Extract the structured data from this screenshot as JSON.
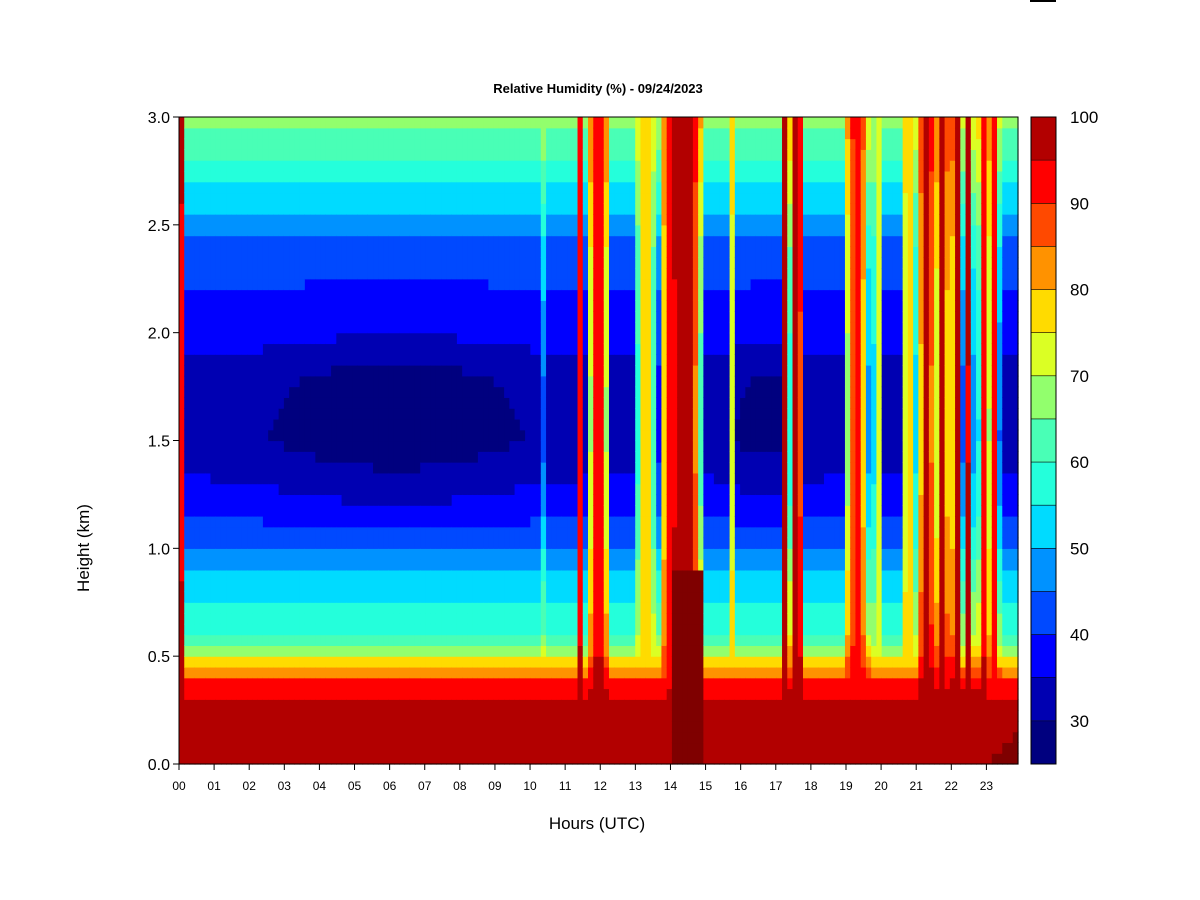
{
  "chart_data": {
    "type": "heatmap",
    "title": "Relative Humidity (%) - 09/24/2023",
    "xlabel": "Hours (UTC)",
    "ylabel": "Height (km)",
    "xlim": [
      0,
      23.9
    ],
    "ylim": [
      0.0,
      3.0
    ],
    "x_ticks": [
      "00",
      "01",
      "02",
      "03",
      "04",
      "05",
      "06",
      "07",
      "08",
      "09",
      "10",
      "11",
      "12",
      "13",
      "14",
      "15",
      "16",
      "17",
      "18",
      "19",
      "20",
      "21",
      "22",
      "23"
    ],
    "y_ticks": [
      "0.0",
      "0.5",
      "1.0",
      "1.5",
      "2.0",
      "2.5",
      "3.0"
    ],
    "colorbar": {
      "levels": [
        25,
        30,
        35,
        40,
        45,
        50,
        55,
        60,
        65,
        70,
        75,
        80,
        85,
        90,
        95,
        100
      ],
      "tick_labels": [
        "30",
        "40",
        "50",
        "60",
        "70",
        "80",
        "90",
        "100"
      ],
      "colors": [
        "#00007f",
        "#0000b2",
        "#0000ff",
        "#0049ff",
        "#0092ff",
        "#00dbff",
        "#24ffdb",
        "#49ffb6",
        "#92ff6d",
        "#dbff24",
        "#ffdb00",
        "#ff9200",
        "#ff4900",
        "#ff0000",
        "#b20000",
        "#7f0000"
      ]
    },
    "profile": {
      "heights_km": [
        0.0,
        0.15,
        0.3,
        0.4,
        0.5,
        0.6,
        0.75,
        0.9,
        1.0,
        1.2,
        1.5,
        1.8,
        2.0,
        2.2,
        2.4,
        2.6,
        2.8,
        3.0
      ],
      "rh_percent": [
        100,
        100,
        97,
        88,
        72,
        60,
        56,
        50,
        45,
        38,
        32,
        33,
        38,
        40,
        44,
        52,
        60,
        66
      ]
    },
    "moist_columns": [
      {
        "hour": 0.1,
        "width": 0.12,
        "rh": 97
      },
      {
        "hour": 10.45,
        "width": 0.08,
        "rh": 80
      },
      {
        "hour": 11.45,
        "width": 0.12,
        "rh": 96
      },
      {
        "hour": 11.95,
        "width": 0.35,
        "rh": 96
      },
      {
        "hour": 13.3,
        "width": 0.35,
        "rh": 78
      },
      {
        "hour": 14.0,
        "width": 0.35,
        "rh": 92
      },
      {
        "hour": 14.45,
        "width": 0.55,
        "rh": 100
      },
      {
        "hour": 15.8,
        "width": 0.1,
        "rh": 80
      },
      {
        "hour": 17.25,
        "width": 0.1,
        "rh": 96
      },
      {
        "hour": 17.6,
        "width": 0.25,
        "rh": 100
      },
      {
        "hour": 19.3,
        "width": 0.4,
        "rh": 92
      },
      {
        "hour": 19.9,
        "width": 0.15,
        "rh": 75
      },
      {
        "hour": 20.8,
        "width": 0.25,
        "rh": 80
      },
      {
        "hour": 21.3,
        "width": 0.3,
        "rh": 98
      },
      {
        "hour": 21.75,
        "width": 0.25,
        "rh": 96
      },
      {
        "hour": 22.15,
        "width": 0.2,
        "rh": 98
      },
      {
        "hour": 22.5,
        "width": 0.15,
        "rh": 96
      },
      {
        "hour": 22.9,
        "width": 0.15,
        "rh": 96
      },
      {
        "hour": 23.2,
        "width": 0.2,
        "rh": 92
      }
    ]
  }
}
